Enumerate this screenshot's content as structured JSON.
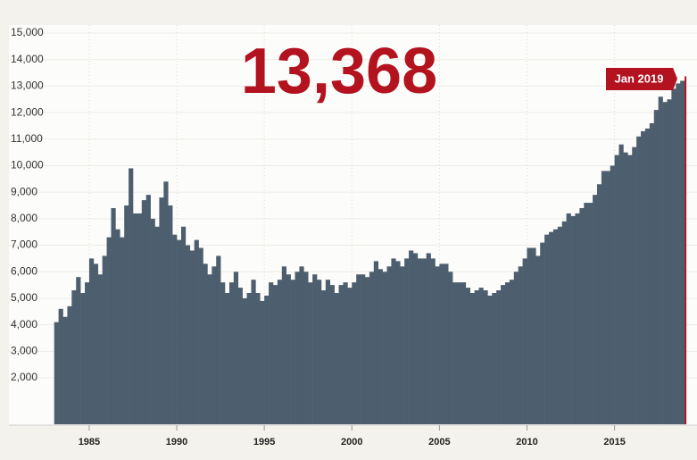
{
  "chart_data": {
    "type": "bar",
    "highlight": {
      "x": 2019,
      "value": 13368,
      "label": "13,368",
      "date_label": "Jan 2019",
      "color": "#b3121f"
    },
    "series": [
      {
        "color": "#4d5f6e",
        "x": [
          1983,
          1983.25,
          1983.5,
          1983.75,
          1984,
          1984.25,
          1984.5,
          1984.75,
          1985,
          1985.25,
          1985.5,
          1985.75,
          1986,
          1986.25,
          1986.5,
          1986.75,
          1987,
          1987.25,
          1987.5,
          1987.75,
          1988,
          1988.25,
          1988.5,
          1988.75,
          1989,
          1989.25,
          1989.5,
          1989.75,
          1990,
          1990.25,
          1990.5,
          1990.75,
          1991,
          1991.25,
          1991.5,
          1991.75,
          1992,
          1992.25,
          1992.5,
          1992.75,
          1993,
          1993.25,
          1993.5,
          1993.75,
          1994,
          1994.25,
          1994.5,
          1994.75,
          1995,
          1995.25,
          1995.5,
          1995.75,
          1996,
          1996.25,
          1996.5,
          1996.75,
          1997,
          1997.25,
          1997.5,
          1997.75,
          1998,
          1998.25,
          1998.5,
          1998.75,
          1999,
          1999.25,
          1999.5,
          1999.75,
          2000,
          2000.25,
          2000.5,
          2000.75,
          2001,
          2001.25,
          2001.5,
          2001.75,
          2002,
          2002.25,
          2002.5,
          2002.75,
          2003,
          2003.25,
          2003.5,
          2003.75,
          2004,
          2004.25,
          2004.5,
          2004.75,
          2005,
          2005.25,
          2005.5,
          2005.75,
          2006,
          2006.25,
          2006.5,
          2006.75,
          2007,
          2007.25,
          2007.5,
          2007.75,
          2008,
          2008.25,
          2008.5,
          2008.75,
          2009,
          2009.25,
          2009.5,
          2009.75,
          2010,
          2010.25,
          2010.5,
          2010.75,
          2011,
          2011.25,
          2011.5,
          2011.75,
          2012,
          2012.25,
          2012.5,
          2012.75,
          2013,
          2013.25,
          2013.5,
          2013.75,
          2014,
          2014.25,
          2014.5,
          2014.75,
          2015,
          2015.25,
          2015.5,
          2015.75,
          2016,
          2016.25,
          2016.5,
          2016.75,
          2017,
          2017.25,
          2017.5,
          2017.75,
          2018,
          2018.25,
          2018.5,
          2018.75
        ],
        "values": [
          4100,
          4600,
          4300,
          4700,
          5300,
          5800,
          5200,
          5600,
          6500,
          6300,
          5900,
          6600,
          7300,
          8400,
          7600,
          7300,
          8500,
          9900,
          8200,
          8200,
          8700,
          8900,
          8000,
          7700,
          8800,
          9400,
          8500,
          7400,
          7200,
          7700,
          7000,
          6800,
          7200,
          6900,
          6300,
          5900,
          6200,
          6600,
          5600,
          5200,
          5600,
          6000,
          5400,
          5000,
          5200,
          5700,
          5200,
          4900,
          5100,
          5600,
          5500,
          5700,
          6200,
          5900,
          5700,
          6000,
          6200,
          6000,
          5600,
          5900,
          5700,
          5300,
          5700,
          5500,
          5200,
          5500,
          5600,
          5400,
          5600,
          5900,
          5900,
          5800,
          6000,
          6400,
          6100,
          6000,
          6200,
          6500,
          6400,
          6200,
          6500,
          6800,
          6700,
          6500,
          6500,
          6700,
          6500,
          6200,
          6300,
          6300,
          6000,
          5600,
          5600,
          5600,
          5400,
          5200,
          5300,
          5400,
          5300,
          5100,
          5200,
          5300,
          5500,
          5600,
          5700,
          6000,
          6200,
          6500,
          6900,
          6900,
          6600,
          7100,
          7400,
          7500,
          7600,
          7700,
          7900,
          8200,
          8100,
          8200,
          8400,
          8600,
          8600,
          8900,
          9300,
          9800,
          9800,
          10000,
          10400,
          10800,
          10500,
          10400,
          10700,
          11100,
          11300,
          11400,
          11600,
          12100,
          12600,
          12400,
          12500,
          12900,
          13100,
          13200
        ]
      }
    ],
    "xlim": [
      1983,
      2019.25
    ],
    "xticks": [
      1985,
      1990,
      1995,
      2000,
      2005,
      2010,
      2015
    ],
    "ylim": [
      250,
      15000
    ],
    "yticks": [
      {
        "value": 2000,
        "label": "2,000"
      },
      {
        "value": 3000,
        "label": "3,000"
      },
      {
        "value": 4000,
        "label": "4,000"
      },
      {
        "value": 5000,
        "label": "5,000"
      },
      {
        "value": 6000,
        "label": "6,000"
      },
      {
        "value": 7000,
        "label": "7,000"
      },
      {
        "value": 8000,
        "label": "8,000"
      },
      {
        "value": 9000,
        "label": "9,000"
      },
      {
        "value": 10000,
        "label": "10,000"
      },
      {
        "value": 11000,
        "label": "11,000"
      },
      {
        "value": 12000,
        "label": "12,000"
      },
      {
        "value": 13000,
        "label": "13,000"
      },
      {
        "value": 14000,
        "label": "14,000"
      },
      {
        "value": 15000,
        "label": "15,000"
      }
    ],
    "grid": true
  }
}
